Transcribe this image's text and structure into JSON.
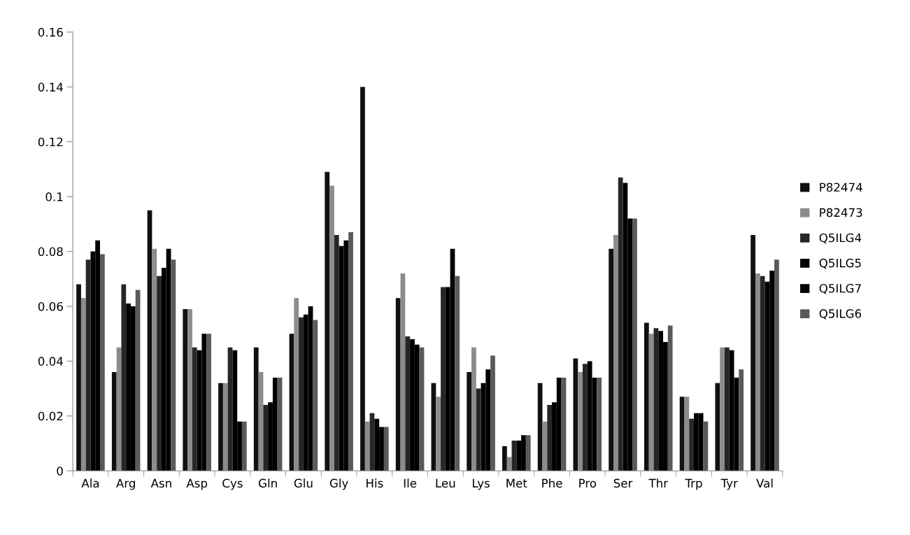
{
  "chart_data": {
    "type": "bar",
    "categories": [
      "Ala",
      "Arg",
      "Asn",
      "Asp",
      "Cys",
      "Gln",
      "Glu",
      "Gly",
      "His",
      "Ile",
      "Leu",
      "Lys",
      "Met",
      "Phe",
      "Pro",
      "Ser",
      "Thr",
      "Trp",
      "Tyr",
      "Val"
    ],
    "series": [
      {
        "name": "P82474",
        "color": "#111111",
        "values": [
          0.068,
          0.036,
          0.095,
          0.059,
          0.032,
          0.045,
          0.05,
          0.109,
          0.14,
          0.063,
          0.032,
          0.036,
          0.009,
          0.032,
          0.041,
          0.081,
          0.054,
          0.027,
          0.032,
          0.086
        ]
      },
      {
        "name": "P82473",
        "color": "#8c8c8c",
        "values": [
          0.063,
          0.045,
          0.081,
          0.059,
          0.032,
          0.036,
          0.063,
          0.104,
          0.018,
          0.072,
          0.027,
          0.045,
          0.005,
          0.018,
          0.036,
          0.086,
          0.05,
          0.027,
          0.045,
          0.072
        ]
      },
      {
        "name": "Q5ILG4",
        "color": "#262626",
        "values": [
          0.077,
          0.068,
          0.071,
          0.045,
          0.045,
          0.024,
          0.056,
          0.086,
          0.021,
          0.049,
          0.067,
          0.03,
          0.011,
          0.024,
          0.039,
          0.107,
          0.052,
          0.019,
          0.045,
          0.071
        ]
      },
      {
        "name": "Q5ILG5",
        "color": "#000000",
        "values": [
          0.08,
          0.061,
          0.074,
          0.044,
          0.044,
          0.025,
          0.057,
          0.082,
          0.019,
          0.048,
          0.067,
          0.032,
          0.011,
          0.025,
          0.04,
          0.105,
          0.051,
          0.021,
          0.044,
          0.069
        ]
      },
      {
        "name": "Q5ILG7",
        "color": "#000000",
        "values": [
          0.084,
          0.06,
          0.081,
          0.05,
          0.018,
          0.034,
          0.06,
          0.084,
          0.016,
          0.046,
          0.081,
          0.037,
          0.013,
          0.034,
          0.034,
          0.092,
          0.047,
          0.021,
          0.034,
          0.073
        ]
      },
      {
        "name": "Q5ILG6",
        "color": "#5a5a5a",
        "values": [
          0.079,
          0.066,
          0.077,
          0.05,
          0.018,
          0.034,
          0.055,
          0.087,
          0.016,
          0.045,
          0.071,
          0.042,
          0.013,
          0.034,
          0.034,
          0.092,
          0.053,
          0.018,
          0.037,
          0.077
        ]
      }
    ],
    "ylim": [
      0,
      0.16
    ],
    "yticks": [
      0,
      0.02,
      0.04,
      0.06,
      0.08,
      0.1,
      0.12,
      0.14,
      0.16
    ],
    "legend": "right"
  }
}
